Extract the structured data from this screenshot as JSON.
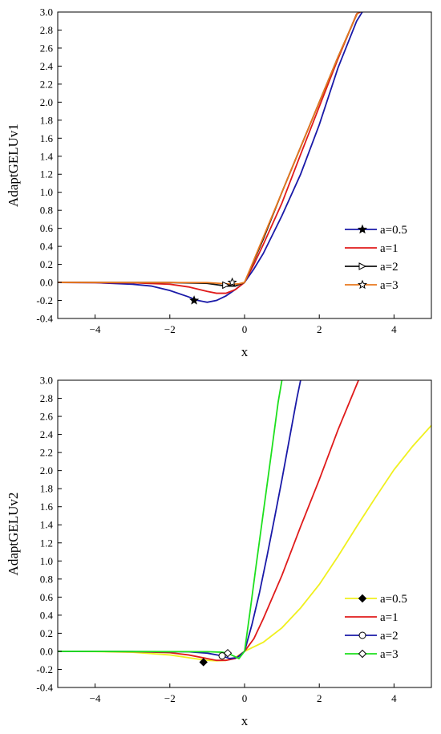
{
  "chart_data": [
    {
      "type": "line",
      "title": "",
      "xlabel": "x",
      "ylabel": "AdaptGELUv1",
      "xlim": [
        -5,
        5
      ],
      "ylim": [
        -0.4,
        3.0
      ],
      "xticks": [
        -4,
        -2,
        0,
        2,
        4
      ],
      "yticks": [
        -0.4,
        -0.2,
        0.0,
        0.2,
        0.4,
        0.6,
        0.8,
        1.0,
        1.2,
        1.4,
        1.6,
        1.8,
        2.0,
        2.2,
        2.4,
        2.6,
        2.8,
        3.0
      ],
      "legend_position": "bottom-right",
      "series": [
        {
          "name": "a=0.5",
          "color": "#1a1aa8",
          "marker": "star-filled",
          "marker_point": [
            -1.35,
            -0.2
          ],
          "x": [
            -5,
            -4,
            -3,
            -2.5,
            -2,
            -1.5,
            -1.25,
            -1,
            -0.75,
            -0.5,
            -0.25,
            0,
            0.25,
            0.5,
            1,
            1.5,
            2,
            2.5,
            3,
            3.15
          ],
          "y": [
            0.0,
            -0.003,
            -0.02,
            -0.04,
            -0.09,
            -0.16,
            -0.2,
            -0.22,
            -0.2,
            -0.15,
            -0.08,
            0.0,
            0.15,
            0.32,
            0.74,
            1.2,
            1.75,
            2.38,
            2.9,
            3.0
          ]
        },
        {
          "name": "a=1",
          "color": "#e01b1b",
          "marker": "none",
          "marker_point": null,
          "x": [
            -5,
            -3,
            -2,
            -1.5,
            -1,
            -0.75,
            -0.5,
            -0.25,
            0,
            0.25,
            0.5,
            1,
            1.5,
            2,
            2.5,
            3,
            3.1
          ],
          "y": [
            0.0,
            -0.004,
            -0.02,
            -0.05,
            -0.1,
            -0.12,
            -0.12,
            -0.08,
            0.0,
            0.2,
            0.42,
            0.88,
            1.42,
            1.95,
            2.48,
            2.98,
            3.0
          ]
        },
        {
          "name": "a=2",
          "color": "#111111",
          "marker": "triangle-right-open",
          "marker_point": [
            -0.5,
            -0.03
          ],
          "x": [
            -5,
            -2,
            -1,
            -0.75,
            -0.5,
            -0.25,
            0,
            0.25,
            0.5,
            1,
            1.5,
            2,
            2.5,
            3,
            3.05
          ],
          "y": [
            0.0,
            -0.001,
            -0.01,
            -0.025,
            -0.04,
            -0.04,
            0.0,
            0.24,
            0.48,
            1.0,
            1.5,
            2.0,
            2.5,
            2.97,
            3.0
          ]
        },
        {
          "name": "a=3",
          "color": "#e8781e",
          "marker": "star-open",
          "marker_point": [
            -0.33,
            0.0
          ],
          "x": [
            -5,
            -1,
            -0.5,
            -0.33,
            -0.15,
            0,
            0.25,
            0.5,
            1,
            1.5,
            2,
            2.5,
            3,
            3.05
          ],
          "y": [
            0.0,
            -0.002,
            -0.015,
            -0.02,
            -0.015,
            0.0,
            0.25,
            0.5,
            1.0,
            1.5,
            2.0,
            2.5,
            2.97,
            3.0
          ]
        }
      ]
    },
    {
      "type": "line",
      "title": "",
      "xlabel": "x",
      "ylabel": "AdaptGELUv2",
      "xlim": [
        -5,
        5
      ],
      "ylim": [
        -0.4,
        3.0
      ],
      "xticks": [
        -4,
        -2,
        0,
        2,
        4
      ],
      "yticks": [
        -0.4,
        -0.2,
        0.0,
        0.2,
        0.4,
        0.6,
        0.8,
        1.0,
        1.2,
        1.4,
        1.6,
        1.8,
        2.0,
        2.2,
        2.4,
        2.6,
        2.8,
        3.0
      ],
      "legend_position": "bottom-right",
      "series": [
        {
          "name": "a=0.5",
          "color": "#f0f01e",
          "marker": "diamond-filled",
          "marker_point": [
            -1.1,
            -0.12
          ],
          "x": [
            -5,
            -4,
            -3,
            -2,
            -1.5,
            -1,
            -0.75,
            -0.5,
            -0.25,
            0,
            0.5,
            1,
            1.5,
            2,
            2.5,
            3,
            3.5,
            4,
            4.5,
            5
          ],
          "y": [
            0.0,
            -0.002,
            -0.01,
            -0.04,
            -0.07,
            -0.1,
            -0.105,
            -0.1,
            -0.07,
            0.0,
            0.1,
            0.26,
            0.48,
            0.74,
            1.05,
            1.38,
            1.7,
            2.01,
            2.27,
            2.5
          ]
        },
        {
          "name": "a=1",
          "color": "#e01b1b",
          "marker": "none",
          "marker_point": null,
          "x": [
            -5,
            -3,
            -2,
            -1.5,
            -1,
            -0.75,
            -0.5,
            -0.25,
            0,
            0.25,
            0.5,
            1,
            1.5,
            2,
            2.5,
            3,
            3.05
          ],
          "y": [
            0.0,
            -0.003,
            -0.015,
            -0.04,
            -0.08,
            -0.1,
            -0.1,
            -0.08,
            0.0,
            0.14,
            0.36,
            0.84,
            1.38,
            1.9,
            2.45,
            2.95,
            3.0
          ]
        },
        {
          "name": "a=2",
          "color": "#1a1aa8",
          "marker": "circle-open",
          "marker_point": [
            -0.6,
            -0.05
          ],
          "x": [
            -5,
            -1.5,
            -1,
            -0.6,
            -0.4,
            -0.2,
            0,
            0.2,
            0.4,
            0.6,
            0.8,
            1,
            1.2,
            1.4,
            1.5
          ],
          "y": [
            0.0,
            -0.005,
            -0.02,
            -0.05,
            -0.08,
            -0.07,
            0.0,
            0.3,
            0.65,
            1.05,
            1.47,
            1.9,
            2.35,
            2.8,
            3.0
          ]
        },
        {
          "name": "a=3",
          "color": "#1ee01e",
          "marker": "diamond-open",
          "marker_point": [
            -0.45,
            -0.02
          ],
          "x": [
            -5,
            -1,
            -0.6,
            -0.45,
            -0.3,
            -0.15,
            0,
            0.15,
            0.3,
            0.5,
            0.7,
            0.9,
            1.0
          ],
          "y": [
            0.0,
            -0.004,
            -0.01,
            -0.02,
            -0.05,
            -0.08,
            0.0,
            0.45,
            0.92,
            1.53,
            2.14,
            2.76,
            3.0
          ]
        }
      ]
    }
  ]
}
